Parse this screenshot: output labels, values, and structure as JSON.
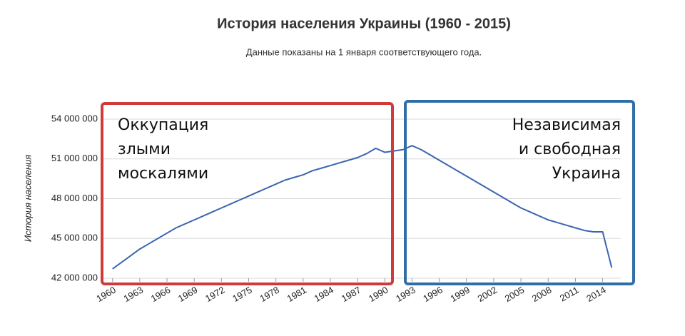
{
  "chart_data": {
    "type": "line",
    "title": "История населения Украины (1960 - 2015)",
    "subtitle": "Данные показаны на 1 января соответствующего года.",
    "y_label": "История населения",
    "x": [
      1960,
      1961,
      1962,
      1963,
      1964,
      1965,
      1966,
      1967,
      1968,
      1969,
      1970,
      1971,
      1972,
      1973,
      1974,
      1975,
      1976,
      1977,
      1978,
      1979,
      1980,
      1981,
      1982,
      1983,
      1984,
      1985,
      1986,
      1987,
      1988,
      1989,
      1990,
      1991,
      1992,
      1993,
      1994,
      1995,
      1996,
      1997,
      1998,
      1999,
      2000,
      2001,
      2002,
      2003,
      2004,
      2005,
      2006,
      2007,
      2008,
      2009,
      2010,
      2011,
      2012,
      2013,
      2014,
      2015
    ],
    "series": [
      {
        "name": "История населения",
        "color": "#3a65b0",
        "values": [
          42700000,
          43200000,
          43700000,
          44200000,
          44600000,
          45000000,
          45400000,
          45800000,
          46100000,
          46400000,
          46700000,
          47000000,
          47300000,
          47600000,
          47900000,
          48200000,
          48500000,
          48800000,
          49100000,
          49400000,
          49600000,
          49800000,
          50100000,
          50300000,
          50500000,
          50700000,
          50900000,
          51100000,
          51400000,
          51800000,
          51500000,
          51600000,
          51700000,
          52000000,
          51700000,
          51300000,
          50900000,
          50500000,
          50100000,
          49700000,
          49300000,
          48900000,
          48500000,
          48100000,
          47700000,
          47300000,
          47000000,
          46700000,
          46400000,
          46200000,
          46000000,
          45800000,
          45600000,
          45500000,
          45500000,
          42800000
        ]
      }
    ],
    "xlim": [
      1959,
      2016
    ],
    "xticks": [
      1960,
      1963,
      1966,
      1969,
      1972,
      1975,
      1978,
      1981,
      1984,
      1987,
      1990,
      1993,
      1996,
      1999,
      2002,
      2005,
      2008,
      2011,
      2014
    ],
    "ylim": [
      42000000,
      54000000
    ],
    "yticks": [
      {
        "value": 42000000,
        "label": "42 000 000"
      },
      {
        "value": 45000000,
        "label": "45 000 000"
      },
      {
        "value": 48000000,
        "label": "48 000 000"
      },
      {
        "value": 51000000,
        "label": "51 000 000"
      },
      {
        "value": 54000000,
        "label": "54 000 000"
      }
    ],
    "grid": true,
    "annotations": [
      {
        "lines": [
          "Оккупация",
          "злыми",
          "москалями"
        ],
        "color": "#d13a3a"
      },
      {
        "lines": [
          "Независимая",
          "и свободная",
          "Украина"
        ],
        "color": "#2f6ea6"
      }
    ]
  }
}
